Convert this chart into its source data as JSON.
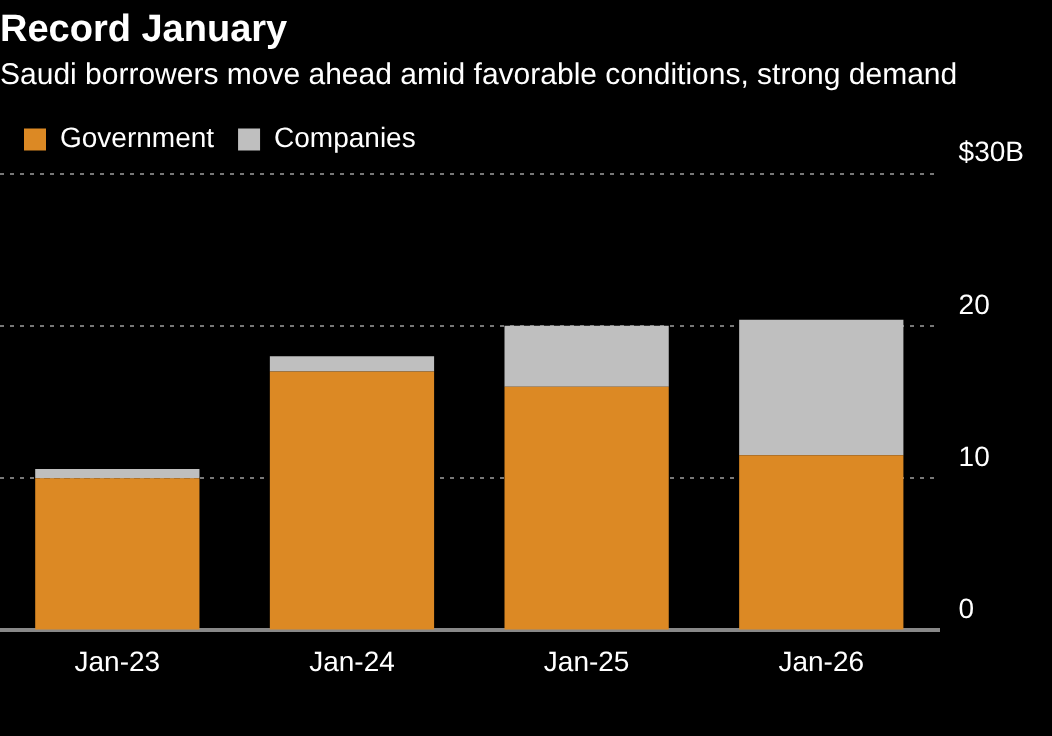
{
  "chart_data": {
    "type": "bar",
    "title": "Record January",
    "subtitle": "Saudi borrowers move ahead amid favorable conditions, strong demand",
    "categories": [
      "Jan-23",
      "Jan-24",
      "Jan-25",
      "Jan-26"
    ],
    "series": [
      {
        "name": "Government",
        "color": "#dc8924",
        "values": [
          10.0,
          17.0,
          16.0,
          11.5
        ]
      },
      {
        "name": "Companies",
        "color": "#bfbfbf",
        "values": [
          0.6,
          1.0,
          4.0,
          8.9
        ]
      }
    ],
    "stacked": true,
    "ylim": [
      0,
      30
    ],
    "yticks": [
      0,
      10,
      20,
      {
        "value": 30,
        "label": "$30B"
      }
    ],
    "grid": "y",
    "legend": "top left"
  }
}
